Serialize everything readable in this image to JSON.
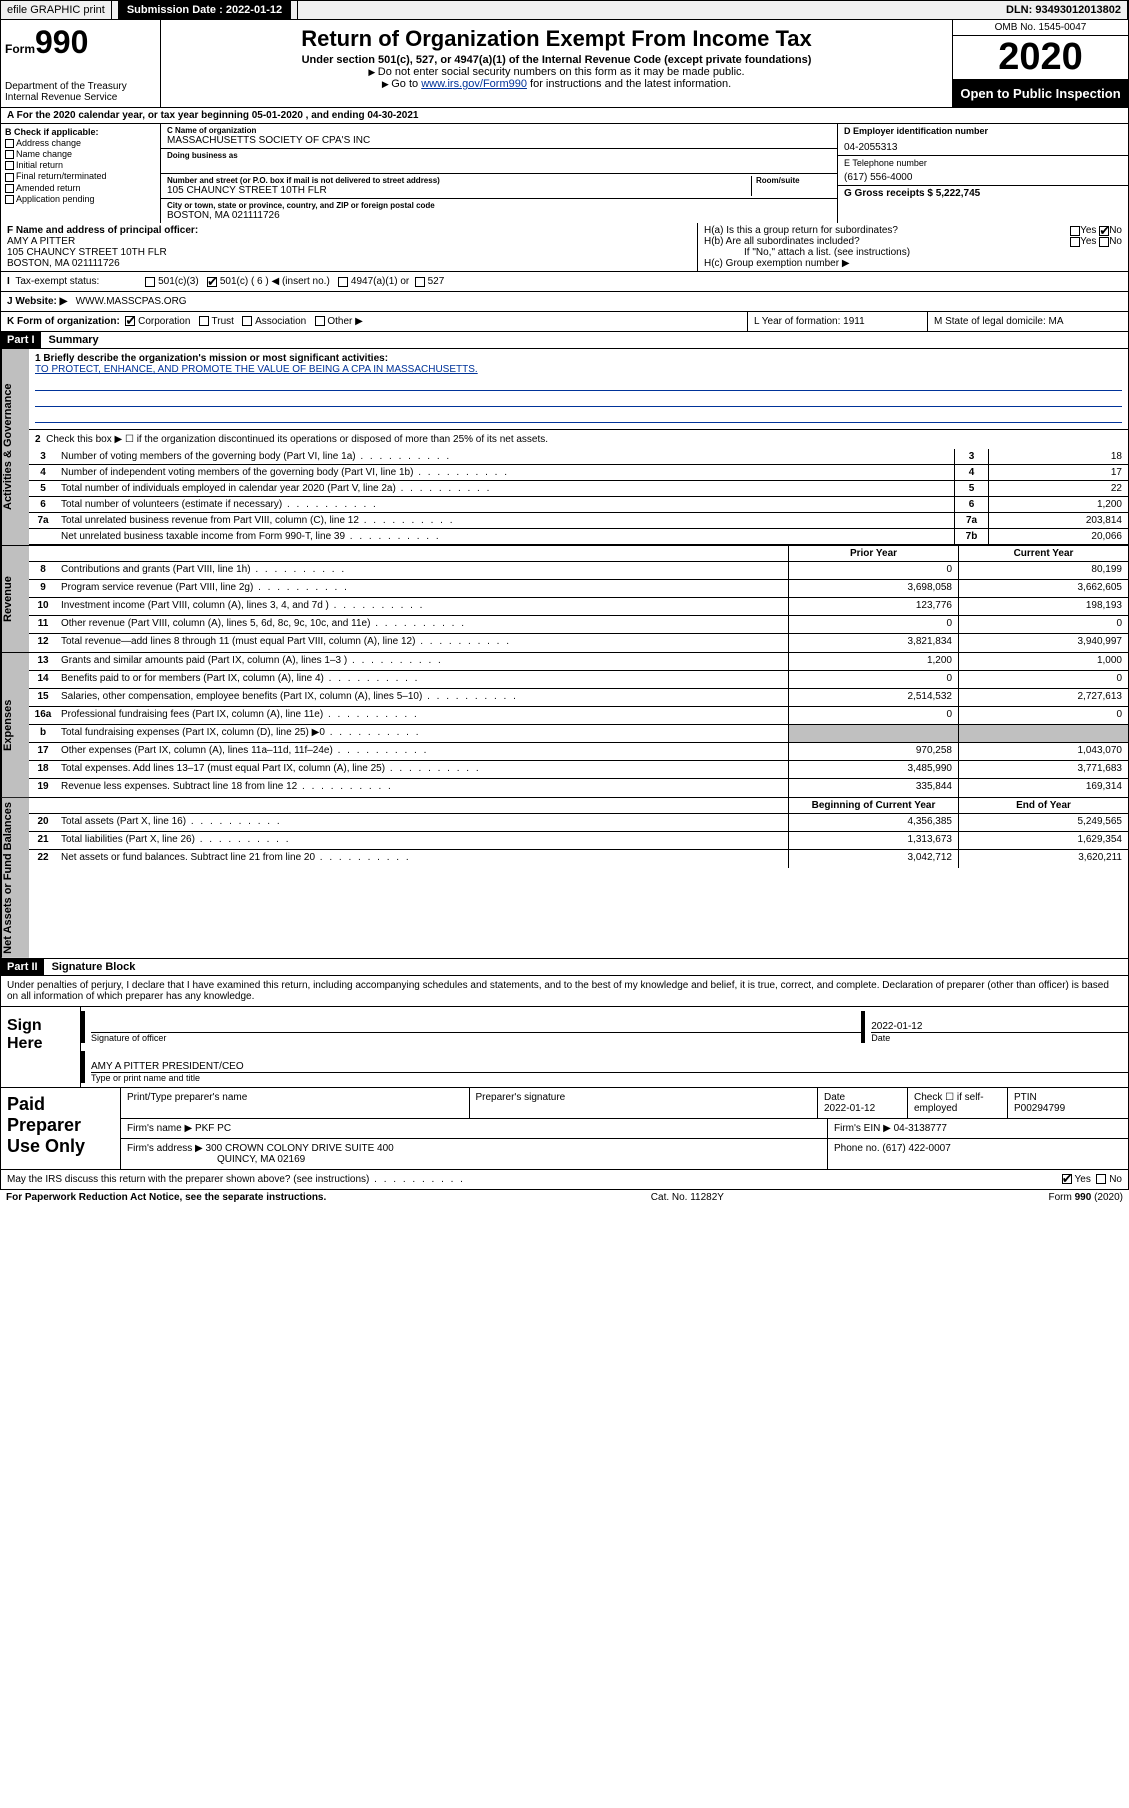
{
  "top": {
    "efile": "efile GRAPHIC print",
    "submission_label": "Submission Date : 2022-01-12",
    "dln": "DLN: 93493012013802"
  },
  "header": {
    "form_prefix": "Form",
    "form_no": "990",
    "dept": "Department of the Treasury",
    "irs": "Internal Revenue Service",
    "title": "Return of Organization Exempt From Income Tax",
    "sub": "Under section 501(c), 527, or 4947(a)(1) of the Internal Revenue Code (except private foundations)",
    "note1": "Do not enter social security numbers on this form as it may be made public.",
    "note2_pre": "Go to ",
    "note2_link": "www.irs.gov/Form990",
    "note2_post": " for instructions and the latest information.",
    "omb": "OMB No. 1545-0047",
    "year": "2020",
    "open": "Open to Public Inspection"
  },
  "period": "For the 2020 calendar year, or tax year beginning 05-01-2020   , and ending 04-30-2021",
  "b": {
    "lbl": "B Check if applicable:",
    "o1": "Address change",
    "o2": "Name change",
    "o3": "Initial return",
    "o4": "Final return/terminated",
    "o5": "Amended return",
    "o6": "Application pending"
  },
  "c": {
    "name_lbl": "C Name of organization",
    "name": "MASSACHUSETTS SOCIETY OF CPA'S INC",
    "dba_lbl": "Doing business as",
    "addr_lbl": "Number and street (or P.O. box if mail is not delivered to street address)",
    "room_lbl": "Room/suite",
    "addr": "105 CHAUNCY STREET 10TH FLR",
    "city_lbl": "City or town, state or province, country, and ZIP or foreign postal code",
    "city": "BOSTON, MA  021111726"
  },
  "d": {
    "lbl": "D Employer identification number",
    "val": "04-2055313"
  },
  "e": {
    "lbl": "E Telephone number",
    "val": "(617) 556-4000"
  },
  "g": {
    "lbl": "G Gross receipts $ 5,222,745"
  },
  "f": {
    "lbl": "F Name and address of principal officer:",
    "name": "AMY A PITTER",
    "addr": "105 CHAUNCY STREET 10TH FLR",
    "city": "BOSTON, MA  021111726"
  },
  "h": {
    "a": "H(a)  Is this a group return for subordinates?",
    "b": "H(b)  Are all subordinates included?",
    "note": "If \"No,\" attach a list. (see instructions)",
    "c": "H(c)  Group exemption number ▶",
    "yes": "Yes",
    "no": "No"
  },
  "i": {
    "lbl": "Tax-exempt status:",
    "o1": "501(c)(3)",
    "o2": "501(c) ( 6 ) ◀ (insert no.)",
    "o3": "4947(a)(1) or",
    "o4": "527"
  },
  "j": {
    "lbl": "J   Website: ▶",
    "val": "WWW.MASSCPAS.ORG"
  },
  "k": {
    "lbl": "K Form of organization:",
    "o1": "Corporation",
    "o2": "Trust",
    "o3": "Association",
    "o4": "Other ▶",
    "l": "L Year of formation: 1911",
    "m": "M State of legal domicile: MA"
  },
  "part1": {
    "header": "Part I",
    "title": "Summary"
  },
  "vtabs": {
    "gov": "Activities & Governance",
    "rev": "Revenue",
    "exp": "Expenses",
    "net": "Net Assets or Fund Balances"
  },
  "gov": {
    "q1_lbl": "1  Briefly describe the organization's mission or most significant activities:",
    "q1_val": "TO PROTECT, ENHANCE, AND PROMOTE THE VALUE OF BEING A CPA IN MASSACHUSETTS.",
    "q2": "Check this box ▶ ☐  if the organization discontinued its operations or disposed of more than 25% of its net assets.",
    "rows": [
      {
        "n": "3",
        "t": "Number of voting members of the governing body (Part VI, line 1a)",
        "b": "3",
        "v": "18"
      },
      {
        "n": "4",
        "t": "Number of independent voting members of the governing body (Part VI, line 1b)",
        "b": "4",
        "v": "17"
      },
      {
        "n": "5",
        "t": "Total number of individuals employed in calendar year 2020 (Part V, line 2a)",
        "b": "5",
        "v": "22"
      },
      {
        "n": "6",
        "t": "Total number of volunteers (estimate if necessary)",
        "b": "6",
        "v": "1,200"
      },
      {
        "n": "7a",
        "t": "Total unrelated business revenue from Part VIII, column (C), line 12",
        "b": "7a",
        "v": "203,814"
      },
      {
        "n": "",
        "t": "Net unrelated business taxable income from Form 990-T, line 39",
        "b": "7b",
        "v": "20,066"
      }
    ]
  },
  "fin": {
    "col1": "Prior Year",
    "col2": "Current Year",
    "col1b": "Beginning of Current Year",
    "col2b": "End of Year"
  },
  "revenue": [
    {
      "n": "8",
      "t": "Contributions and grants (Part VIII, line 1h)",
      "v1": "0",
      "v2": "80,199"
    },
    {
      "n": "9",
      "t": "Program service revenue (Part VIII, line 2g)",
      "v1": "3,698,058",
      "v2": "3,662,605"
    },
    {
      "n": "10",
      "t": "Investment income (Part VIII, column (A), lines 3, 4, and 7d )",
      "v1": "123,776",
      "v2": "198,193"
    },
    {
      "n": "11",
      "t": "Other revenue (Part VIII, column (A), lines 5, 6d, 8c, 9c, 10c, and 11e)",
      "v1": "0",
      "v2": "0"
    },
    {
      "n": "12",
      "t": "Total revenue—add lines 8 through 11 (must equal Part VIII, column (A), line 12)",
      "v1": "3,821,834",
      "v2": "3,940,997"
    }
  ],
  "expenses": [
    {
      "n": "13",
      "t": "Grants and similar amounts paid (Part IX, column (A), lines 1–3 )",
      "v1": "1,200",
      "v2": "1,000"
    },
    {
      "n": "14",
      "t": "Benefits paid to or for members (Part IX, column (A), line 4)",
      "v1": "0",
      "v2": "0"
    },
    {
      "n": "15",
      "t": "Salaries, other compensation, employee benefits (Part IX, column (A), lines 5–10)",
      "v1": "2,514,532",
      "v2": "2,727,613"
    },
    {
      "n": "16a",
      "t": "Professional fundraising fees (Part IX, column (A), line 11e)",
      "v1": "0",
      "v2": "0"
    },
    {
      "n": "b",
      "t": "Total fundraising expenses (Part IX, column (D), line 25) ▶0",
      "v1": "",
      "v2": "",
      "shaded": true
    },
    {
      "n": "17",
      "t": "Other expenses (Part IX, column (A), lines 11a–11d, 11f–24e)",
      "v1": "970,258",
      "v2": "1,043,070"
    },
    {
      "n": "18",
      "t": "Total expenses. Add lines 13–17 (must equal Part IX, column (A), line 25)",
      "v1": "3,485,990",
      "v2": "3,771,683"
    },
    {
      "n": "19",
      "t": "Revenue less expenses. Subtract line 18 from line 12",
      "v1": "335,844",
      "v2": "169,314"
    }
  ],
  "netassets": [
    {
      "n": "20",
      "t": "Total assets (Part X, line 16)",
      "v1": "4,356,385",
      "v2": "5,249,565"
    },
    {
      "n": "21",
      "t": "Total liabilities (Part X, line 26)",
      "v1": "1,313,673",
      "v2": "1,629,354"
    },
    {
      "n": "22",
      "t": "Net assets or fund balances. Subtract line 21 from line 20",
      "v1": "3,042,712",
      "v2": "3,620,211"
    }
  ],
  "part2": {
    "header": "Part II",
    "title": "Signature Block"
  },
  "perjury": "Under penalties of perjury, I declare that I have examined this return, including accompanying schedules and statements, and to the best of my knowledge and belief, it is true, correct, and complete. Declaration of preparer (other than officer) is based on all information of which preparer has any knowledge.",
  "sign": {
    "here": "Sign Here",
    "sig_lbl": "Signature of officer",
    "date_lbl": "Date",
    "date": "2022-01-12",
    "name": "AMY A PITTER  PRESIDENT/CEO",
    "name_lbl": "Type or print name and title"
  },
  "paid": {
    "lbl": "Paid Preparer Use Only",
    "h1": "Print/Type preparer's name",
    "h2": "Preparer's signature",
    "h3": "Date",
    "h3v": "2022-01-12",
    "h4": "Check ☐ if self-employed",
    "h5": "PTIN",
    "h5v": "P00294799",
    "firm_lbl": "Firm's name   ▶",
    "firm": "PKF PC",
    "ein_lbl": "Firm's EIN ▶",
    "ein": "04-3138777",
    "addr_lbl": "Firm's address ▶",
    "addr": "300 CROWN COLONY DRIVE SUITE 400",
    "addr2": "QUINCY, MA  02169",
    "phone_lbl": "Phone no.",
    "phone": "(617) 422-0007"
  },
  "disclose": {
    "q": "May the IRS discuss this return with the preparer shown above? (see instructions)",
    "yes": "Yes",
    "no": "No"
  },
  "footer": {
    "left": "For Paperwork Reduction Act Notice, see the separate instructions.",
    "mid": "Cat. No. 11282Y",
    "right": "Form 990 (2020)"
  }
}
